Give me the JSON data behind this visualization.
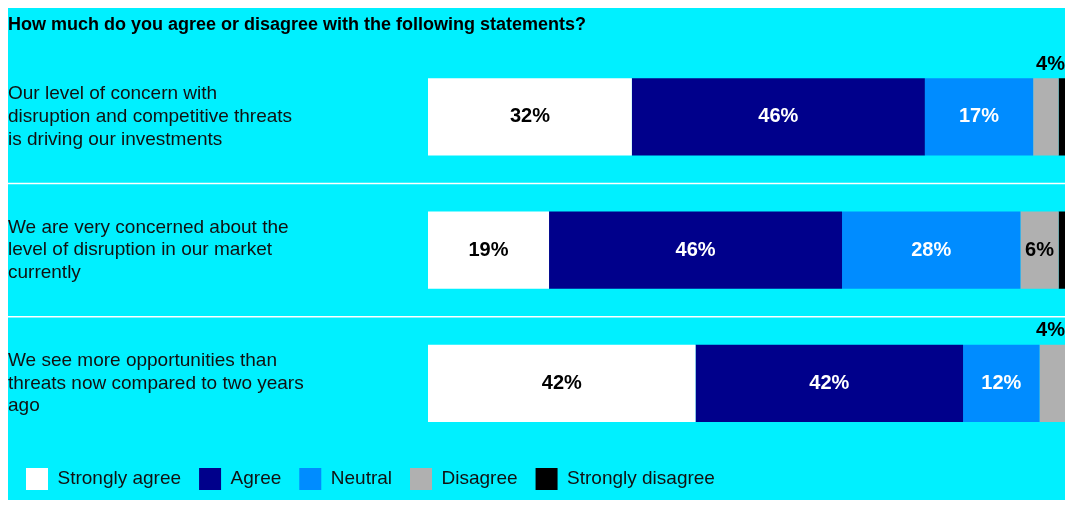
{
  "chart_data": {
    "type": "bar",
    "orientation": "horizontal",
    "stacked": true,
    "title": "How much do you agree or disagree with the following statements?",
    "categories": [
      "Our level of concern with disruption and competitive threats is driving our investments",
      "We are very concerned about the level of disruption in our market currently",
      "We see more opportunities than threats now compared to two years ago"
    ],
    "series": [
      {
        "name": "Strongly agree",
        "color": "#ffffff",
        "values": [
          32,
          19,
          42
        ],
        "value_labels": [
          "32%",
          "19%",
          "42%"
        ]
      },
      {
        "name": "Agree",
        "color": "#00008b",
        "values": [
          46,
          46,
          42
        ],
        "value_labels": [
          "46%",
          "46%",
          "42%"
        ]
      },
      {
        "name": "Neutral",
        "color": "#008cff",
        "values": [
          17,
          28,
          12
        ],
        "value_labels": [
          "17%",
          "28%",
          "12%"
        ]
      },
      {
        "name": "Disagree",
        "color": "#b0b0b0",
        "values": [
          4,
          6,
          4
        ],
        "value_labels": [
          "4%",
          "6%",
          "4%"
        ]
      },
      {
        "name": "Strongly disagree",
        "color": "#000000",
        "values": [
          1,
          1,
          0
        ],
        "value_labels": [
          null,
          null,
          null
        ]
      }
    ],
    "xlim": [
      0,
      100
    ],
    "grid": "y",
    "legend": "bottom left"
  }
}
